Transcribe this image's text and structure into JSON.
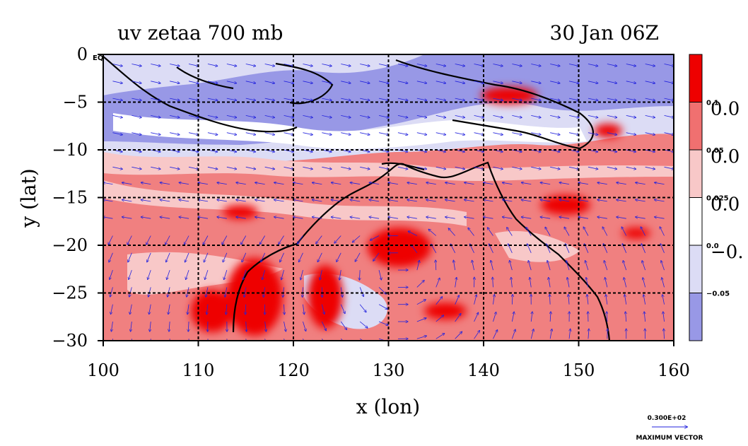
{
  "chart_data": {
    "type": "heatmap",
    "title": "uv zetaa 700 mb",
    "time_label": "30 Jan 06Z",
    "xlabel": "x (lon)",
    "ylabel": "y (lat)",
    "xlim": [
      100,
      160
    ],
    "ylim": [
      -30,
      0
    ],
    "x_ticks": [
      "100",
      "110",
      "120",
      "130",
      "140",
      "150",
      "160"
    ],
    "y_ticks": [
      "0",
      "−5",
      "−10",
      "−15",
      "−20",
      "−25",
      "−30"
    ],
    "y_tick_values": [
      0,
      -5,
      -10,
      -15,
      -20,
      -25,
      -30
    ],
    "y_top_suffix": "EQ",
    "grid": true,
    "colorbar": {
      "levels": [
        {
          "label": "0.1",
          "big": "0.0",
          "color": "#ee0000"
        },
        {
          "label": "0.05",
          "big": "0.0",
          "color": "#f07070"
        },
        {
          "label": "0.025",
          "big": "0.0",
          "color": "#f8c8c8"
        },
        {
          "label": "0.0",
          "big": "−0.",
          "color": "#ffffff"
        },
        {
          "label": "−0.05",
          "big": "",
          "color": "#dcdcf5"
        },
        {
          "label": "",
          "big": "",
          "color": "#9898e6"
        }
      ]
    },
    "vector_key": {
      "value": "0.300E+02",
      "label": "MAXIMUM VECTOR"
    }
  }
}
